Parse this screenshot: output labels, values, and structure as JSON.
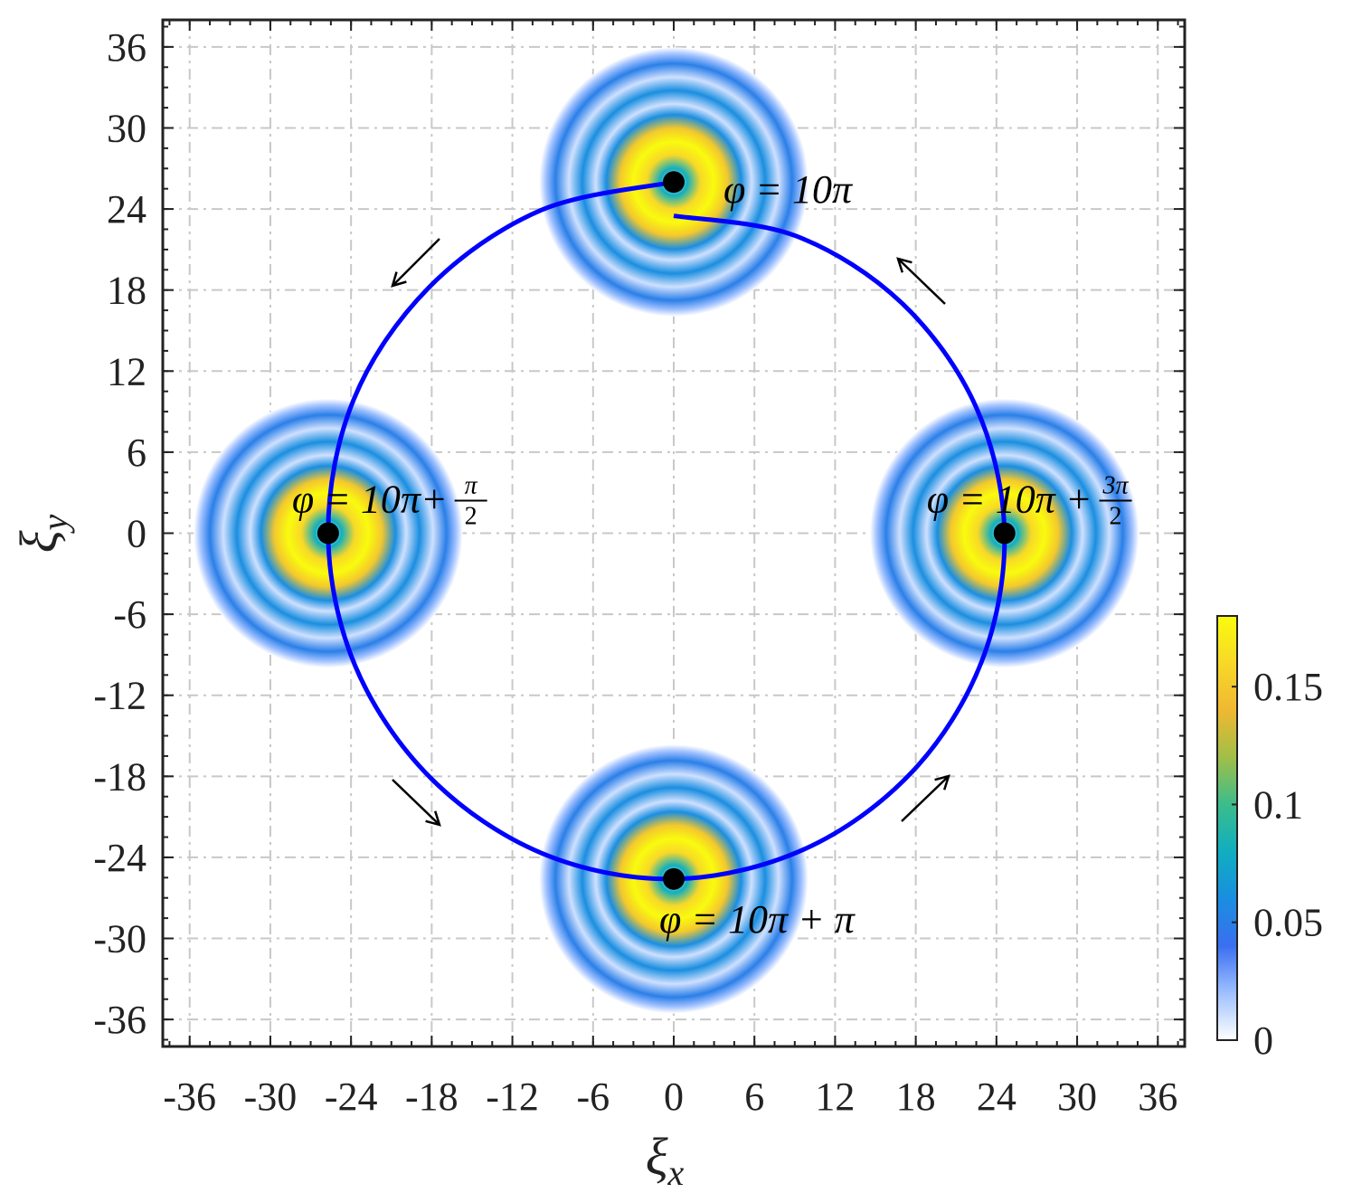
{
  "chart_data": {
    "type": "trajectory",
    "xlabel": {
      "symbol": "ξ",
      "sub": "x"
    },
    "ylabel": {
      "symbol": "ξ",
      "sub": "y"
    },
    "xlim": [
      -38,
      38
    ],
    "ylim": [
      -38,
      38
    ],
    "xticks": [
      -36,
      -30,
      -24,
      -18,
      -12,
      -6,
      0,
      6,
      12,
      18,
      24,
      30,
      36
    ],
    "yticks": [
      -36,
      -30,
      -24,
      -18,
      -12,
      -6,
      0,
      6,
      12,
      18,
      24,
      30,
      36
    ],
    "minor_tick_step": 1.5,
    "grid": true,
    "trajectory": {
      "color": "#0000ff",
      "x": [
        0,
        -9.9,
        -18.2,
        -23.8,
        -25.7,
        -23.7,
        -18.1,
        -9.8,
        0,
        9.7,
        17.7,
        22.9,
        24.6,
        22.5,
        17.0,
        9.1,
        0
      ],
      "y": [
        26,
        23.9,
        18.2,
        9.9,
        0,
        -9.8,
        -18.1,
        -23.7,
        -25.6,
        -23.4,
        -17.7,
        -9.5,
        0,
        9.3,
        17.0,
        22.0,
        23.5
      ]
    },
    "markers": {
      "color": "#000000",
      "x": [
        0,
        -25.7,
        0,
        24.6
      ],
      "y": [
        26,
        0,
        -25.6,
        0
      ],
      "labels": [
        {
          "text": "φ = 10π"
        },
        {
          "text": "φ = 10π+",
          "frac": [
            "π",
            "2"
          ]
        },
        {
          "text": "φ = 10π + π"
        },
        {
          "text": "φ = 10π +",
          "frac": [
            "3π",
            "2"
          ]
        }
      ]
    },
    "intensity_profile": {
      "r": [
        0,
        1,
        2,
        3,
        4,
        5,
        5.8,
        6.8,
        7.8,
        8.8,
        9.5,
        10
      ],
      "values": [
        0,
        0.08,
        0.16,
        0.18,
        0.15,
        0.06,
        0.01,
        0.06,
        0.01,
        0.05,
        0.02,
        0
      ]
    },
    "colorbar": {
      "lim": [
        0,
        0.18
      ],
      "ticks": [
        0,
        0.05,
        0.1,
        0.15
      ],
      "colors": [
        "#ffffff",
        "#9fc0ff",
        "#3a6ff0",
        "#1a8ee0",
        "#10aec0",
        "#3cbc8c",
        "#a0bf48",
        "#f0b832",
        "#f8d828",
        "#f9fb0e"
      ]
    }
  }
}
